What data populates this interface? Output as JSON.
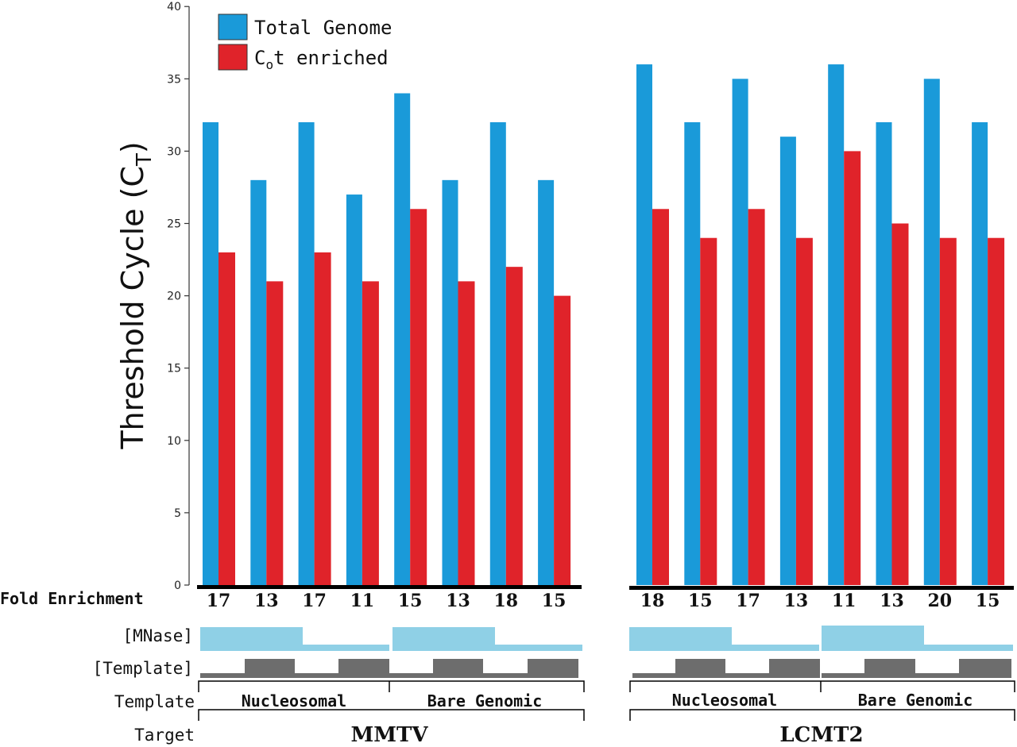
{
  "colors": {
    "total": "#1a9ad9",
    "cot": "#e0232a",
    "mnase": "#8fd0e6",
    "template": "#6d6d6d",
    "axis": "#000000"
  },
  "chart_data": {
    "type": "bar",
    "ylabel_main": "Threshold Cycle (C",
    "ylabel_sub": "T",
    "ylabel_close": ")",
    "ylim": [
      0,
      40
    ],
    "yticks": [
      0,
      5,
      10,
      15,
      20,
      25,
      30,
      35,
      40
    ],
    "legend": {
      "placement": "top-left",
      "total_label": "Total Genome",
      "cot_pre": "C",
      "cot_sub": "o",
      "cot_post": "t enriched"
    },
    "groups": [
      {
        "target": "MMTV",
        "templates": [
          "Nucleosomal",
          "Bare Genomic"
        ]
      },
      {
        "target": "LCMT2",
        "templates": [
          "Nucleosomal",
          "Bare Genomic"
        ]
      }
    ],
    "series": [
      {
        "name": "Total Genome",
        "values": [
          32,
          28,
          32,
          27,
          34,
          28,
          32,
          28,
          36,
          32,
          35,
          31,
          36,
          32,
          35,
          32
        ]
      },
      {
        "name": "Cot enriched",
        "values": [
          23,
          21,
          23,
          21,
          26,
          21,
          22,
          20,
          26,
          24,
          26,
          24,
          30,
          25,
          24,
          24
        ]
      }
    ],
    "fold_enrichment": [
      "17",
      "13",
      "17",
      "11",
      "15",
      "13",
      "18",
      "15",
      "18",
      "15",
      "17",
      "13",
      "11",
      "13",
      "20",
      "15"
    ]
  },
  "row_labels": {
    "fold": "Fold Enrichment",
    "mnase": "[MNase]",
    "template": "[Template]",
    "template_type": "Template",
    "target": "Target"
  }
}
